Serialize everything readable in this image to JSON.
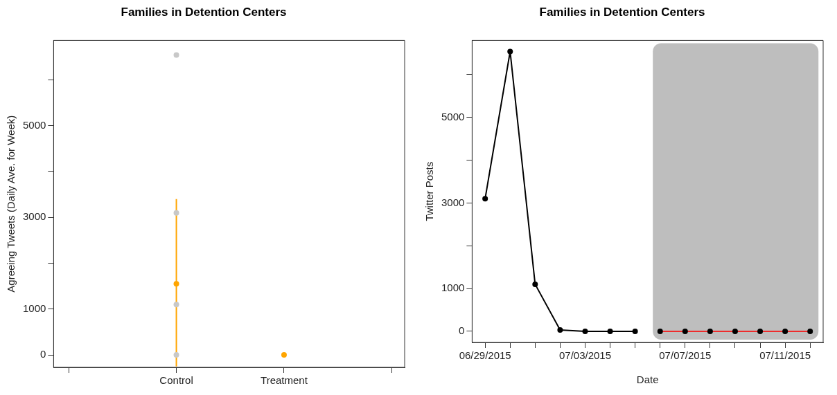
{
  "chart_data": [
    {
      "type": "scatter",
      "title": "Families in Detention Centers",
      "ylabel": "Agreeing Tweets (Daily Ave. for Week)",
      "categories": [
        null,
        "Control",
        "Treatment",
        null
      ],
      "series": [
        {
          "color": "#c8c8c8",
          "x": [
            "Control",
            "Control",
            "Control",
            "Control"
          ],
          "values": [
            6540,
            3100,
            1100,
            0
          ]
        },
        {
          "color": "#ffa500",
          "values": [
            null,
            1550,
            0,
            null
          ],
          "errors": [
            null,
            [
              -250,
              3400
            ],
            null,
            null
          ]
        }
      ],
      "ylim": [
        -270,
        6860
      ],
      "yticks": [
        0,
        1000,
        {
          "value": 2000,
          "label": null
        },
        3000,
        {
          "value": 4000,
          "label": null
        },
        5000,
        {
          "value": 6000,
          "label": null
        }
      ],
      "grid": false,
      "legend": false,
      "marker": "circle"
    },
    {
      "type": "line",
      "title": "Families in Detention Centers",
      "xlabel": "Date",
      "ylabel": "Twitter Posts",
      "series": [
        {
          "color": "#000000",
          "marker": "circle",
          "x": [
            "2015-06-29",
            "2015-06-30",
            "2015-07-01",
            "2015-07-02",
            "2015-07-03",
            "2015-07-04",
            "2015-07-05"
          ],
          "values": [
            3100,
            6540,
            1100,
            30,
            0,
            0,
            0
          ]
        },
        {
          "color": "#ee2c2c",
          "marker": "none",
          "x": [
            "2015-07-06",
            "2015-07-07",
            "2015-07-08",
            "2015-07-09",
            "2015-07-10",
            "2015-07-11",
            "2015-07-12"
          ],
          "values": [
            0,
            0,
            0,
            0,
            0,
            0,
            0
          ]
        },
        {
          "type": "scatter",
          "color": "#000000",
          "marker": "circle",
          "x": [
            "2015-07-06",
            "2015-07-07",
            "2015-07-08",
            "2015-07-09",
            "2015-07-10",
            "2015-07-11",
            "2015-07-12"
          ],
          "values": [
            0,
            0,
            0,
            0,
            0,
            0,
            0
          ]
        }
      ],
      "bands": [
        {
          "axis": "x",
          "from": "2015-07-05T17:00",
          "to": "2015-07-12T08:00",
          "color": "#bebebe"
        }
      ],
      "xlim": [
        "2015-06-28T11:30",
        "2015-07-12T12:30"
      ],
      "xticks": [
        {
          "value": "2015-06-29",
          "label": "06/29/2015"
        },
        {
          "value": "2015-06-30",
          "label": null
        },
        {
          "value": "2015-07-01",
          "label": null
        },
        {
          "value": "2015-07-02",
          "label": null
        },
        {
          "value": "2015-07-03",
          "label": "07/03/2015"
        },
        {
          "value": "2015-07-04",
          "label": null
        },
        {
          "value": "2015-07-05",
          "label": null
        },
        {
          "value": "2015-07-06",
          "label": null
        },
        {
          "value": "2015-07-07",
          "label": "07/07/2015"
        },
        {
          "value": "2015-07-08",
          "label": null
        },
        {
          "value": "2015-07-09",
          "label": null
        },
        {
          "value": "2015-07-10",
          "label": null
        },
        {
          "value": "2015-07-11",
          "label": "07/11/2015"
        },
        {
          "value": "2015-07-12",
          "label": null
        }
      ],
      "ylim": [
        -260,
        6800
      ],
      "yticks": [
        0,
        1000,
        {
          "value": 2000,
          "label": null
        },
        3000,
        {
          "value": 4000,
          "label": null
        },
        5000,
        {
          "value": 6000,
          "label": null
        }
      ],
      "grid": false,
      "legend": false
    }
  ]
}
